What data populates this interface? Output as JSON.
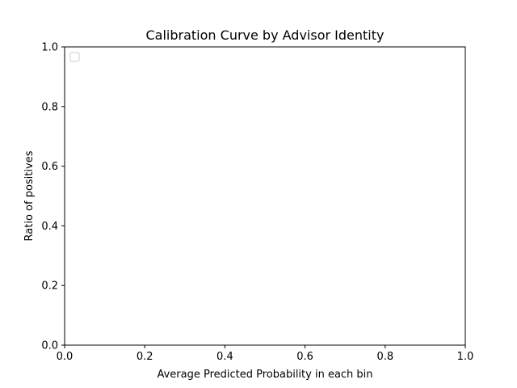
{
  "chart_data": {
    "type": "line",
    "title": "Calibration Curve by Advisor Identity",
    "xlabel": "Average Predicted Probability in each bin",
    "ylabel": "Ratio of positives",
    "xlim": [
      0.0,
      1.0
    ],
    "ylim": [
      0.0,
      1.0
    ],
    "x_ticks": [
      0.0,
      0.2,
      0.4,
      0.6,
      0.8,
      1.0
    ],
    "y_ticks": [
      0.0,
      0.2,
      0.4,
      0.6,
      0.8,
      1.0
    ],
    "x_tick_labels": [
      "0.0",
      "0.2",
      "0.4",
      "0.6",
      "0.8",
      "1.0"
    ],
    "y_tick_labels": [
      "0.0",
      "0.2",
      "0.4",
      "0.6",
      "0.8",
      "1.0"
    ],
    "grid": false,
    "legend": {
      "placement": "top-left",
      "entries": []
    },
    "series": []
  }
}
